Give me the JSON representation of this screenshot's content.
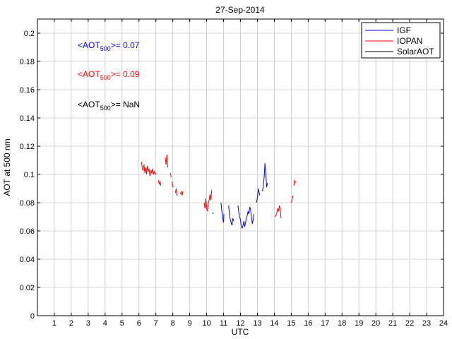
{
  "chart_data": {
    "type": "line",
    "title": "27-Sep-2014",
    "xlabel": "UTC",
    "ylabel": "AOT at 500 nm",
    "xlim": [
      0,
      24
    ],
    "ylim": [
      0,
      0.21
    ],
    "x_ticks": [
      "1",
      "2",
      "3",
      "4",
      "5",
      "6",
      "7",
      "8",
      "9",
      "10",
      "11",
      "12",
      "13",
      "14",
      "15",
      "16",
      "17",
      "18",
      "19",
      "20",
      "21",
      "22",
      "23",
      "24"
    ],
    "y_ticks": [
      "0",
      "0.02",
      "0.04",
      "0.06",
      "0.08",
      "0.1",
      "0.12",
      "0.14",
      "0.16",
      "0.18",
      "0.2"
    ],
    "grid": true,
    "legend_position": "top-right",
    "annotations": [
      {
        "prefix": "<AOT",
        "sub": "500",
        "suffix": ">= 0.07",
        "color": "#0000ff"
      },
      {
        "prefix": "<AOT",
        "sub": "500",
        "suffix": ">= 0.09",
        "color": "#ff0000"
      },
      {
        "prefix": "<AOT",
        "sub": "500",
        "suffix": ">=  NaN",
        "color": "#000000"
      }
    ],
    "series": [
      {
        "name": "IGF",
        "color": "#0000ff",
        "segments": [
          [
            [
              10.35,
              0.073
            ],
            [
              10.4,
              0.072
            ]
          ],
          [
            [
              10.85,
              0.08
            ],
            [
              10.9,
              0.074
            ],
            [
              10.95,
              0.069
            ],
            [
              11.0,
              0.066
            ],
            [
              11.02,
              0.072
            ]
          ],
          [
            [
              11.3,
              0.078
            ],
            [
              11.35,
              0.072
            ],
            [
              11.4,
              0.068
            ],
            [
              11.45,
              0.066
            ],
            [
              11.5,
              0.064
            ],
            [
              11.55,
              0.069
            ],
            [
              11.6,
              0.067
            ]
          ],
          [
            [
              11.85,
              0.078
            ],
            [
              11.9,
              0.073
            ],
            [
              11.95,
              0.07
            ],
            [
              12.0,
              0.068
            ],
            [
              12.05,
              0.063
            ],
            [
              12.1,
              0.062
            ],
            [
              12.15,
              0.064
            ],
            [
              12.2,
              0.067
            ],
            [
              12.25,
              0.063
            ],
            [
              12.3,
              0.066
            ],
            [
              12.35,
              0.069
            ],
            [
              12.4,
              0.071
            ],
            [
              12.45,
              0.074
            ],
            [
              12.5,
              0.072
            ],
            [
              12.55,
              0.077
            ],
            [
              12.6,
              0.075
            ],
            [
              12.65,
              0.07
            ],
            [
              12.7,
              0.065
            ],
            [
              12.75,
              0.068
            ],
            [
              12.8,
              0.072
            ]
          ],
          [
            [
              12.95,
              0.08
            ],
            [
              13.0,
              0.084
            ],
            [
              13.05,
              0.09
            ],
            [
              13.1,
              0.087
            ],
            [
              13.15,
              0.085
            ]
          ],
          [
            [
              13.3,
              0.088
            ],
            [
              13.35,
              0.092
            ],
            [
              13.4,
              0.098
            ],
            [
              13.45,
              0.108
            ],
            [
              13.5,
              0.1
            ],
            [
              13.55,
              0.091
            ],
            [
              13.6,
              0.094
            ]
          ]
        ]
      },
      {
        "name": "IOPAN",
        "color": "#ff0000",
        "segments": [
          [
            [
              6.15,
              0.109
            ],
            [
              6.2,
              0.104
            ],
            [
              6.25,
              0.103
            ],
            [
              6.3,
              0.107
            ],
            [
              6.35,
              0.101
            ],
            [
              6.4,
              0.105
            ],
            [
              6.45,
              0.1
            ],
            [
              6.5,
              0.106
            ],
            [
              6.55,
              0.102
            ],
            [
              6.6,
              0.104
            ],
            [
              6.65,
              0.099
            ],
            [
              6.7,
              0.103
            ],
            [
              6.75,
              0.101
            ],
            [
              6.8,
              0.104
            ],
            [
              6.85,
              0.1
            ],
            [
              6.9,
              0.102
            ],
            [
              6.95,
              0.1
            ],
            [
              7.0,
              0.101
            ]
          ],
          [
            [
              7.15,
              0.096
            ],
            [
              7.2,
              0.093
            ],
            [
              7.25,
              0.095
            ],
            [
              7.3,
              0.092
            ]
          ],
          [
            [
              7.55,
              0.112
            ],
            [
              7.6,
              0.107
            ],
            [
              7.65,
              0.114
            ],
            [
              7.7,
              0.105
            ]
          ],
          [
            [
              7.85,
              0.101
            ],
            [
              7.9,
              0.098
            ]
          ],
          [
            [
              7.95,
              0.095
            ],
            [
              8.0,
              0.091
            ]
          ],
          [
            [
              8.15,
              0.087
            ],
            [
              8.2,
              0.09
            ],
            [
              8.25,
              0.085
            ]
          ],
          [
            [
              8.45,
              0.086
            ],
            [
              8.5,
              0.088
            ],
            [
              8.55,
              0.085
            ],
            [
              8.6,
              0.088
            ]
          ],
          [
            [
              9.85,
              0.08
            ],
            [
              9.9,
              0.076
            ],
            [
              9.95,
              0.083
            ],
            [
              10.0,
              0.076
            ],
            [
              10.05,
              0.074
            ],
            [
              10.1,
              0.08
            ],
            [
              10.15,
              0.082
            ],
            [
              10.2,
              0.086
            ],
            [
              10.25,
              0.082
            ],
            [
              10.3,
              0.089
            ]
          ],
          [
            [
              14.05,
              0.07
            ],
            [
              14.1,
              0.071
            ],
            [
              14.15,
              0.073
            ],
            [
              14.2,
              0.076
            ],
            [
              14.25,
              0.074
            ],
            [
              14.3,
              0.078
            ],
            [
              14.35,
              0.075
            ],
            [
              14.4,
              0.069
            ]
          ],
          [
            [
              15.0,
              0.08
            ],
            [
              15.05,
              0.082
            ],
            [
              15.1,
              0.085
            ]
          ],
          [
            [
              15.15,
              0.092
            ],
            [
              15.2,
              0.096
            ],
            [
              15.25,
              0.094
            ]
          ]
        ]
      },
      {
        "name": "SolarAOT",
        "color": "#000000",
        "segments": []
      }
    ]
  }
}
